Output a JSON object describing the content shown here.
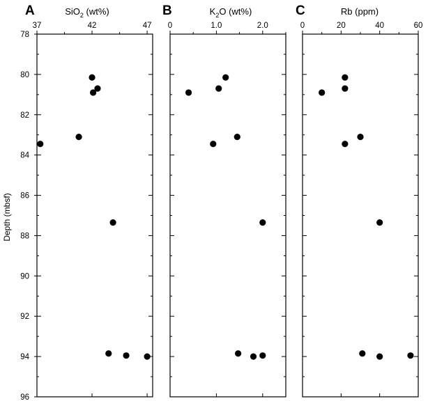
{
  "figure": {
    "y_axis_label": "Depth (mbsf)",
    "y_tick_labels": [
      "78",
      "80",
      "82",
      "84",
      "86",
      "88",
      "90",
      "92",
      "94",
      "96"
    ]
  },
  "chart_data": [
    {
      "type": "scatter",
      "panel_label": "A",
      "title_main": "SiO",
      "title_sub": "2",
      "title_rest": " (wt%)",
      "xlabel": "SiO2 (wt%)",
      "ylabel": "Depth (mbsf)",
      "xlim": [
        37,
        47.5
      ],
      "ylim": [
        96,
        78
      ],
      "x_ticks": [
        37,
        42,
        47
      ],
      "x_tick_labels": [
        "37",
        "42",
        "47"
      ],
      "x": [
        42.0,
        42.5,
        42.1,
        40.8,
        37.3,
        43.9,
        43.5,
        45.1,
        47.0
      ],
      "y": [
        80.15,
        80.7,
        80.9,
        83.1,
        83.45,
        87.35,
        93.85,
        93.95,
        94.0
      ]
    },
    {
      "type": "scatter",
      "panel_label": "B",
      "title_main": "K",
      "title_sub": "2",
      "title_rest": "O (wt%)",
      "xlabel": "K2O (wt%)",
      "ylabel": "Depth (mbsf)",
      "xlim": [
        0,
        2.5
      ],
      "ylim": [
        96,
        78
      ],
      "x_ticks": [
        0,
        1.0,
        2.0
      ],
      "x_tick_labels": [
        "0",
        "1.0",
        "2.0"
      ],
      "x": [
        1.2,
        1.05,
        0.4,
        1.45,
        0.93,
        2.0,
        1.47,
        1.8,
        2.0
      ],
      "y": [
        80.15,
        80.7,
        80.9,
        83.1,
        83.45,
        87.35,
        93.85,
        94.0,
        93.95
      ]
    },
    {
      "type": "scatter",
      "panel_label": "C",
      "title_main": "Rb (ppm)",
      "title_sub": "",
      "title_rest": "",
      "xlabel": "Rb (ppm)",
      "ylabel": "Depth (mbsf)",
      "xlim": [
        0,
        60
      ],
      "ylim": [
        96,
        78
      ],
      "x_ticks": [
        0,
        20,
        40,
        60
      ],
      "x_tick_labels": [
        "0",
        "20",
        "40",
        "60"
      ],
      "x": [
        22,
        22,
        10,
        30,
        22,
        40,
        31,
        40,
        56
      ],
      "y": [
        80.15,
        80.7,
        80.9,
        83.1,
        83.45,
        87.35,
        93.85,
        94.0,
        93.95
      ]
    }
  ]
}
